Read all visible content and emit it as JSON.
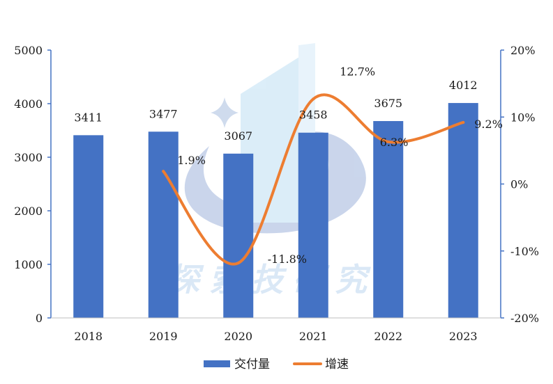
{
  "chart_data": {
    "type": "bar",
    "categories": [
      "2018",
      "2019",
      "2020",
      "2021",
      "2022",
      "2023"
    ],
    "series": [
      {
        "name": "交付量",
        "type": "bar",
        "axis": "left",
        "values": [
          3411,
          3477,
          3067,
          3458,
          3675,
          4012
        ],
        "labels": [
          "3411",
          "3477",
          "3067",
          "3458",
          "3675",
          "4012"
        ],
        "color": "#4472C4"
      },
      {
        "name": "增速",
        "type": "line",
        "axis": "right",
        "values": [
          null,
          1.9,
          -11.8,
          12.7,
          6.3,
          9.2
        ],
        "labels": [
          "",
          "1.9%",
          "-11.8%",
          "12.7%",
          "6.3%",
          "9.2%"
        ],
        "color": "#ED7D31"
      }
    ],
    "y_left": {
      "ylim": [
        0,
        5000
      ],
      "ticks": [
        0,
        1000,
        2000,
        3000,
        4000,
        5000
      ],
      "tick_labels": [
        "0",
        "1000",
        "2000",
        "3000",
        "4000",
        "5000"
      ]
    },
    "y_right": {
      "ylim": [
        -20,
        20
      ],
      "ticks": [
        -20,
        -10,
        0,
        10,
        20
      ],
      "tick_labels": [
        "-20%",
        "-10%",
        "0%",
        "10%",
        "20%"
      ]
    },
    "axis_color": "#4472C4",
    "grid": false,
    "legend_position": "bottom",
    "watermark_text": "探索技研究"
  }
}
